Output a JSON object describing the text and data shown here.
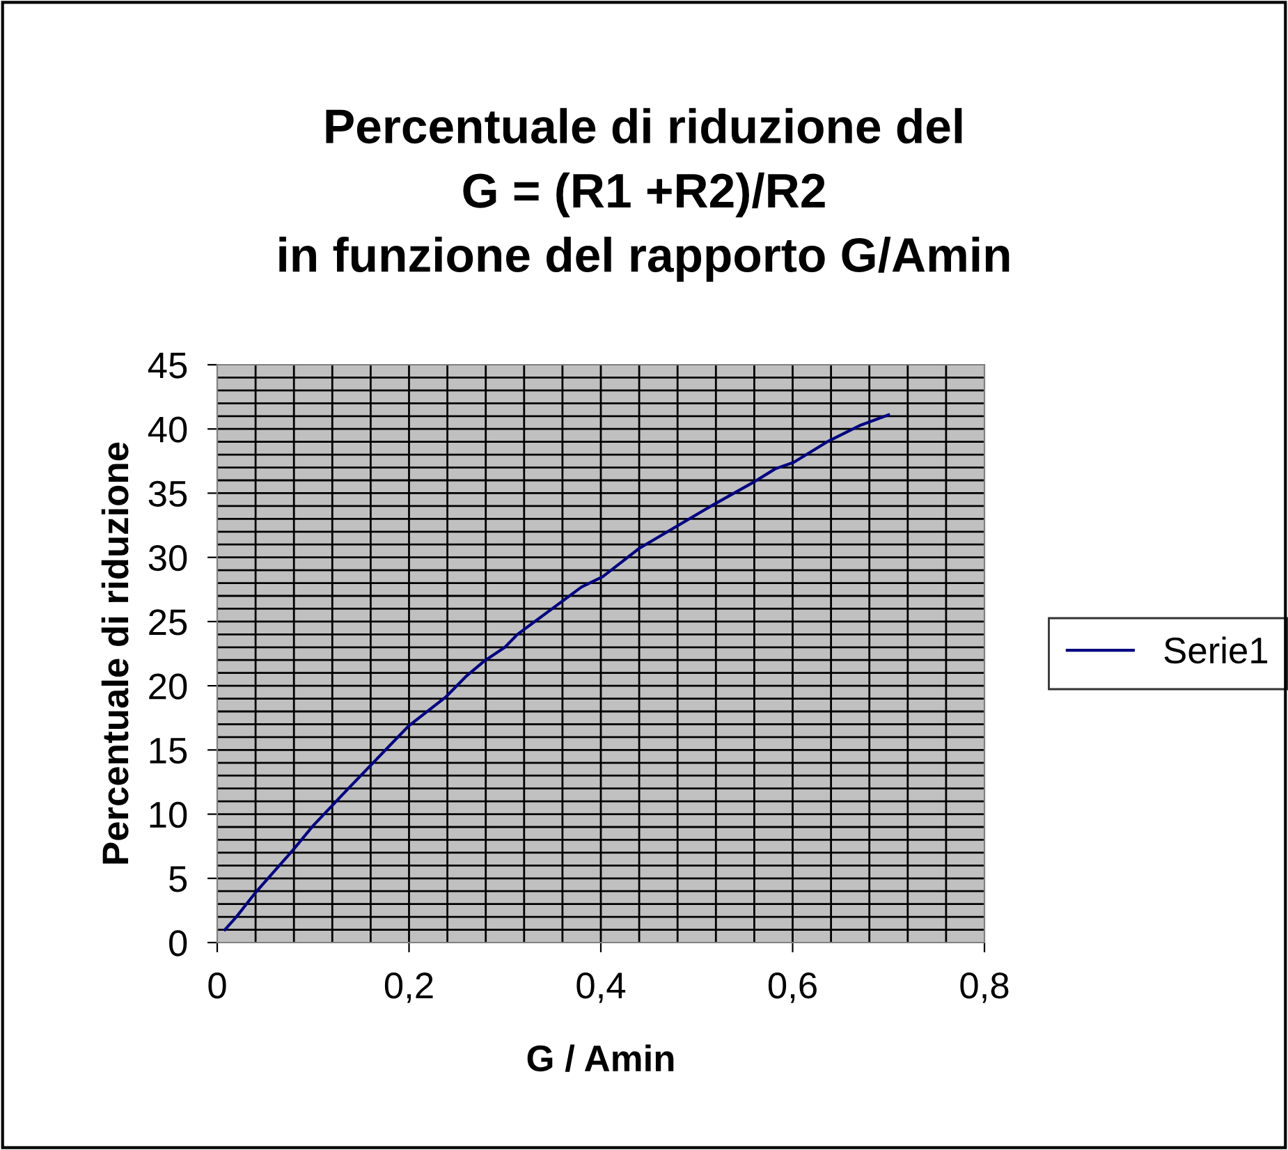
{
  "chart_data": {
    "type": "line",
    "title": "Percentuale di riduzione del\nG = (R1 +R2)/R2\nin funzione del rapporto G/Amin",
    "xlabel": "G / Amin",
    "ylabel": "Percentuale di riduzione",
    "x": [
      0.008,
      0.02,
      0.04,
      0.079,
      0.1,
      0.138,
      0.2,
      0.238,
      0.259,
      0.278,
      0.3,
      0.313,
      0.38,
      0.402,
      0.421,
      0.44,
      0.515,
      0.558,
      0.582,
      0.601,
      0.636,
      0.671,
      0.7
    ],
    "series": [
      {
        "name": "Serie1",
        "color": "#000080",
        "values": [
          1.0,
          2.0,
          3.9,
          7.2,
          9.1,
          12.1,
          16.9,
          19.1,
          20.7,
          21.9,
          23.0,
          24.0,
          27.7,
          28.5,
          29.6,
          30.7,
          34.0,
          35.8,
          36.9,
          37.4,
          39.0,
          40.3,
          41.1
        ]
      }
    ],
    "xlim": [
      0,
      0.8
    ],
    "xticks": [
      {
        "value": 0,
        "label": "0"
      },
      {
        "value": 0.2,
        "label": "0,2"
      },
      {
        "value": 0.4,
        "label": "0,4"
      },
      {
        "value": 0.6,
        "label": "0,6"
      },
      {
        "value": 0.8,
        "label": "0,8"
      }
    ],
    "ylim": [
      0,
      45
    ],
    "yticks": [
      0,
      5,
      10,
      15,
      20,
      25,
      30,
      35,
      40,
      45
    ],
    "grid": true,
    "legend": "right",
    "marker": "none",
    "line_style": "solid"
  }
}
